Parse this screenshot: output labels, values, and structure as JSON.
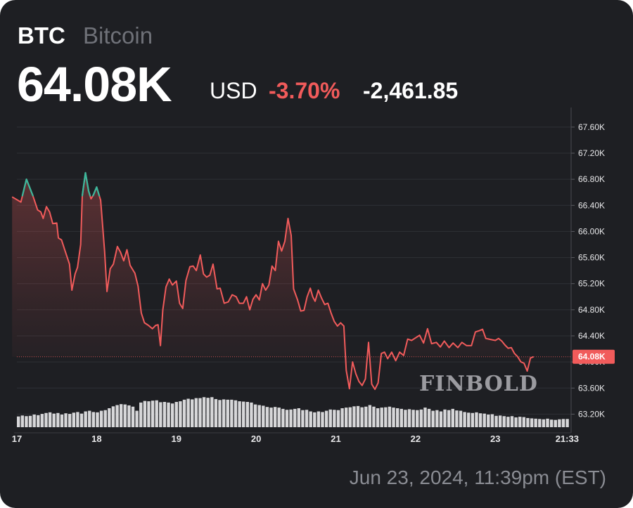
{
  "header": {
    "ticker": "BTC",
    "name": "Bitcoin",
    "price": "64.08K",
    "currency": "USD",
    "change_pct": "-3.70%",
    "change_abs": "-2,461.85"
  },
  "footer": {
    "timestamp": "Jun 23, 2024, 11:39pm (EST)"
  },
  "watermark": "FINBOLD",
  "colors": {
    "down": "#f15b5b",
    "up": "#3bb89c",
    "volume": "#d7d7d9",
    "background": "#1e1f23"
  },
  "chart_data": {
    "type": "line",
    "ylim": [
      63000,
      67900
    ],
    "yticks": [
      "67.60K",
      "67.20K",
      "66.80K",
      "66.40K",
      "66.00K",
      "65.60K",
      "65.20K",
      "64.80K",
      "64.40K",
      "64.00K",
      "63.60K",
      "63.20K"
    ],
    "ytick_values": [
      67600,
      67200,
      66800,
      66400,
      66000,
      65600,
      65200,
      64800,
      64400,
      64000,
      63600,
      63200
    ],
    "xticks": [
      "17",
      "18",
      "19",
      "20",
      "21",
      "22",
      "23",
      "21:33"
    ],
    "xtick_values": [
      17.0,
      18.0,
      19.0,
      20.0,
      21.0,
      22.0,
      23.0,
      23.9
    ],
    "xlim": [
      17.0,
      23.95
    ],
    "last_value": 64080,
    "last_label": "64.08K",
    "series": [
      {
        "values": [
          [
            16.94,
            66530
          ],
          [
            17.05,
            66450
          ],
          [
            17.12,
            66800
          ],
          [
            17.2,
            66550
          ],
          [
            17.26,
            66330
          ],
          [
            17.3,
            66300
          ],
          [
            17.33,
            66200
          ],
          [
            17.37,
            66380
          ],
          [
            17.41,
            66300
          ],
          [
            17.45,
            66120
          ],
          [
            17.5,
            66130
          ],
          [
            17.52,
            65900
          ],
          [
            17.56,
            65870
          ],
          [
            17.6,
            65720
          ],
          [
            17.66,
            65500
          ],
          [
            17.69,
            65100
          ],
          [
            17.73,
            65350
          ],
          [
            17.76,
            65450
          ],
          [
            17.8,
            65800
          ],
          [
            17.82,
            66550
          ],
          [
            17.86,
            66900
          ],
          [
            17.9,
            66620
          ],
          [
            17.93,
            66500
          ],
          [
            17.96,
            66560
          ],
          [
            18.0,
            66680
          ],
          [
            18.05,
            66480
          ],
          [
            18.1,
            65700
          ],
          [
            18.13,
            65080
          ],
          [
            18.17,
            65430
          ],
          [
            18.21,
            65500
          ],
          [
            18.26,
            65770
          ],
          [
            18.3,
            65680
          ],
          [
            18.34,
            65550
          ],
          [
            18.38,
            65720
          ],
          [
            18.42,
            65480
          ],
          [
            18.48,
            65360
          ],
          [
            18.52,
            65160
          ],
          [
            18.56,
            64750
          ],
          [
            18.6,
            64600
          ],
          [
            18.65,
            64560
          ],
          [
            18.7,
            64510
          ],
          [
            18.74,
            64560
          ],
          [
            18.77,
            64570
          ],
          [
            18.8,
            64250
          ],
          [
            18.83,
            64800
          ],
          [
            18.87,
            65150
          ],
          [
            18.91,
            65270
          ],
          [
            18.95,
            65180
          ],
          [
            19.0,
            65240
          ],
          [
            19.04,
            64900
          ],
          [
            19.08,
            64820
          ],
          [
            19.12,
            65250
          ],
          [
            19.17,
            65460
          ],
          [
            19.21,
            65470
          ],
          [
            19.25,
            65400
          ],
          [
            19.3,
            65640
          ],
          [
            19.34,
            65350
          ],
          [
            19.38,
            65300
          ],
          [
            19.42,
            65330
          ],
          [
            19.46,
            65500
          ],
          [
            19.51,
            65120
          ],
          [
            19.55,
            65130
          ],
          [
            19.6,
            64900
          ],
          [
            19.65,
            64920
          ],
          [
            19.7,
            65030
          ],
          [
            19.75,
            65000
          ],
          [
            19.79,
            64900
          ],
          [
            19.84,
            64900
          ],
          [
            19.88,
            65000
          ],
          [
            19.92,
            64800
          ],
          [
            19.96,
            64960
          ],
          [
            20.0,
            65030
          ],
          [
            20.04,
            64950
          ],
          [
            20.08,
            65200
          ],
          [
            20.12,
            65100
          ],
          [
            20.16,
            65180
          ],
          [
            20.2,
            65470
          ],
          [
            20.24,
            65400
          ],
          [
            20.28,
            65850
          ],
          [
            20.32,
            65700
          ],
          [
            20.36,
            65850
          ],
          [
            20.4,
            66200
          ],
          [
            20.44,
            65940
          ],
          [
            20.47,
            65120
          ],
          [
            20.52,
            64950
          ],
          [
            20.56,
            64780
          ],
          [
            20.6,
            64790
          ],
          [
            20.64,
            65000
          ],
          [
            20.68,
            65130
          ],
          [
            20.71,
            65000
          ],
          [
            20.74,
            64930
          ],
          [
            20.78,
            65100
          ],
          [
            20.82,
            64980
          ],
          [
            20.86,
            64880
          ],
          [
            20.9,
            64900
          ],
          [
            20.94,
            64750
          ],
          [
            20.98,
            64620
          ],
          [
            21.02,
            64550
          ],
          [
            21.06,
            64600
          ],
          [
            21.1,
            64550
          ],
          [
            21.13,
            63870
          ],
          [
            21.17,
            63590
          ],
          [
            21.21,
            64000
          ],
          [
            21.25,
            63820
          ],
          [
            21.29,
            63700
          ],
          [
            21.33,
            63640
          ],
          [
            21.37,
            63740
          ],
          [
            21.41,
            64300
          ],
          [
            21.45,
            63660
          ],
          [
            21.49,
            63580
          ],
          [
            21.53,
            63680
          ],
          [
            21.57,
            64130
          ],
          [
            21.61,
            64150
          ],
          [
            21.65,
            64050
          ],
          [
            21.7,
            64150
          ],
          [
            21.75,
            64020
          ],
          [
            21.8,
            64150
          ],
          [
            21.85,
            64100
          ],
          [
            21.9,
            64350
          ],
          [
            21.95,
            64330
          ],
          [
            22.0,
            64370
          ],
          [
            22.05,
            64410
          ],
          [
            22.1,
            64290
          ],
          [
            22.15,
            64510
          ],
          [
            22.2,
            64280
          ],
          [
            22.26,
            64300
          ],
          [
            22.31,
            64230
          ],
          [
            22.36,
            64320
          ],
          [
            22.42,
            64220
          ],
          [
            22.47,
            64290
          ],
          [
            22.53,
            64220
          ],
          [
            22.58,
            64300
          ],
          [
            22.64,
            64250
          ],
          [
            22.7,
            64250
          ],
          [
            22.75,
            64460
          ],
          [
            22.8,
            64480
          ],
          [
            22.84,
            64500
          ],
          [
            22.88,
            64360
          ],
          [
            22.92,
            64350
          ],
          [
            22.96,
            64340
          ],
          [
            23.0,
            64330
          ],
          [
            23.04,
            64360
          ],
          [
            23.08,
            64320
          ],
          [
            23.12,
            64260
          ],
          [
            23.16,
            64210
          ],
          [
            23.2,
            64220
          ],
          [
            23.24,
            64130
          ],
          [
            23.28,
            64080
          ],
          [
            23.32,
            64000
          ],
          [
            23.36,
            63980
          ],
          [
            23.4,
            63860
          ],
          [
            23.44,
            64060
          ],
          [
            23.48,
            64080
          ]
        ]
      }
    ],
    "volume_values": [
      34,
      37,
      35,
      36,
      40,
      38,
      42,
      45,
      47,
      43,
      45,
      40,
      44,
      42,
      46,
      48,
      43,
      50,
      52,
      48,
      47,
      52,
      54,
      60,
      66,
      70,
      73,
      72,
      69,
      65,
      52,
      78,
      83,
      82,
      84,
      85,
      79,
      80,
      78,
      75,
      80,
      82,
      87,
      90,
      88,
      92,
      92,
      95,
      93,
      95,
      89,
      86,
      88,
      87,
      87,
      85,
      82,
      81,
      80,
      78,
      72,
      70,
      68,
      64,
      62,
      64,
      62,
      58,
      55,
      56,
      58,
      60,
      54,
      55,
      50,
      47,
      50,
      48,
      52,
      56,
      55,
      54,
      60,
      62,
      63,
      66,
      67,
      63,
      65,
      70,
      65,
      60,
      62,
      63,
      65,
      62,
      60,
      58,
      55,
      57,
      55,
      54,
      56,
      62,
      58,
      52,
      54,
      50,
      56,
      54,
      58,
      53,
      52,
      48,
      46,
      45,
      47,
      44,
      43,
      40,
      41,
      36,
      37,
      35,
      33,
      35,
      31,
      33,
      32,
      29,
      28,
      27,
      26,
      25,
      27,
      24,
      23,
      25,
      26,
      26
    ]
  }
}
